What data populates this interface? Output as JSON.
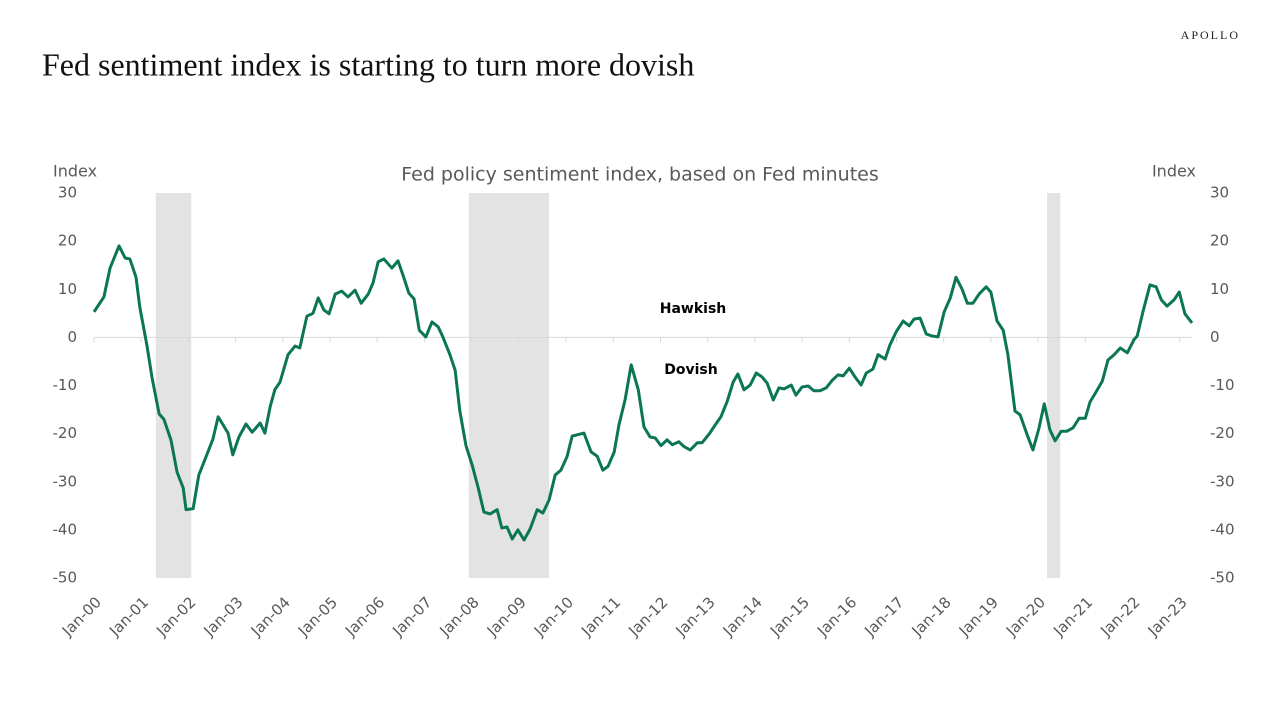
{
  "header": {
    "brand": "APOLLO",
    "title": "Fed sentiment index is starting to turn more dovish"
  },
  "chart_data": {
    "type": "line",
    "title": "Fed policy sentiment index, based on Fed minutes",
    "y_label": "Index",
    "y2_label": "Index",
    "annotations": [
      "Hawkish",
      "Dovish"
    ],
    "x": [
      2000.0,
      2000.21,
      2000.34,
      2000.53,
      2000.66,
      2000.76,
      2000.89,
      2000.97,
      2001.12,
      2001.23,
      2001.38,
      2001.48,
      2001.63,
      2001.76,
      2001.89,
      2001.95,
      2002.1,
      2002.22,
      2002.39,
      2002.52,
      2002.63,
      2002.84,
      2002.94,
      2003.07,
      2003.22,
      2003.35,
      2003.52,
      2003.62,
      2003.73,
      2003.83,
      2003.94,
      2004.11,
      2004.26,
      2004.36,
      2004.51,
      2004.64,
      2004.75,
      2004.87,
      2004.98,
      2005.11,
      2005.25,
      2005.38,
      2005.53,
      2005.66,
      2005.81,
      2005.91,
      2006.02,
      2006.14,
      2006.31,
      2006.44,
      2006.55,
      2006.67,
      2006.78,
      2006.89,
      2007.03,
      2007.16,
      2007.29,
      2007.39,
      2007.54,
      2007.65,
      2007.75,
      2007.88,
      2008.01,
      2008.14,
      2008.26,
      2008.39,
      2008.54,
      2008.64,
      2008.75,
      2008.86,
      2008.98,
      2009.11,
      2009.24,
      2009.39,
      2009.51,
      2009.64,
      2009.77,
      2009.89,
      2010.02,
      2010.13,
      2010.38,
      2010.53,
      2010.66,
      2010.78,
      2010.89,
      2011.02,
      2011.12,
      2011.25,
      2011.38,
      2011.53,
      2011.65,
      2011.78,
      2011.89,
      2012.01,
      2012.14,
      2012.25,
      2012.39,
      2012.5,
      2012.63,
      2012.78,
      2012.88,
      2013.03,
      2013.16,
      2013.28,
      2013.41,
      2013.54,
      2013.64,
      2013.77,
      2013.9,
      2014.03,
      2014.15,
      2014.26,
      2014.39,
      2014.51,
      2014.62,
      2014.77,
      2014.87,
      2015.0,
      2015.13,
      2015.25,
      2015.38,
      2015.51,
      2015.64,
      2015.76,
      2015.87,
      2016.0,
      2016.12,
      2016.25,
      2016.36,
      2016.5,
      2016.61,
      2016.76,
      2016.86,
      2016.99,
      2017.14,
      2017.27,
      2017.37,
      2017.5,
      2017.63,
      2017.75,
      2017.88,
      2018.01,
      2018.14,
      2018.26,
      2018.39,
      2018.5,
      2018.62,
      2018.75,
      2018.9,
      2019.0,
      2019.13,
      2019.26,
      2019.36,
      2019.51,
      2019.62,
      2019.77,
      2019.89,
      2020.02,
      2020.13,
      2020.25,
      2020.36,
      2020.49,
      2020.61,
      2020.74,
      2020.87,
      2021.0,
      2021.1,
      2021.23,
      2021.36,
      2021.48,
      2021.61,
      2021.74,
      2021.89,
      2022.03,
      2022.1,
      2022.22,
      2022.37,
      2022.5,
      2022.61,
      2022.73,
      2022.88,
      2022.99,
      2023.11,
      2023.26
    ],
    "series": [
      {
        "color": "#0b7656",
        "values": [
          5.3,
          8.4,
          14.4,
          19,
          16.5,
          16.3,
          12.5,
          6.3,
          -1.6,
          -8.4,
          -15.9,
          -17,
          -21.3,
          -28,
          -31.3,
          -35.8,
          -35.6,
          -28.6,
          -24.4,
          -21.1,
          -16.5,
          -19.9,
          -24.4,
          -20.7,
          -18,
          -19.7,
          -17.8,
          -19.9,
          -14.5,
          -10.9,
          -9.3,
          -3.6,
          -1.8,
          -2.2,
          4.4,
          5,
          8.2,
          5.7,
          4.9,
          9,
          9.6,
          8.4,
          9.8,
          7.1,
          9,
          11.3,
          15.7,
          16.3,
          14.4,
          15.9,
          12.8,
          9.2,
          8,
          1.5,
          0.1,
          3.2,
          2.2,
          0.1,
          -3.6,
          -6.8,
          -15.3,
          -22.5,
          -26.5,
          -31.3,
          -36.3,
          -36.7,
          -35.8,
          -39.6,
          -39.4,
          -41.9,
          -40,
          -42.1,
          -39.8,
          -35.8,
          -36.5,
          -33.8,
          -28.6,
          -27.6,
          -24.8,
          -20.5,
          -19.9,
          -23.8,
          -24.7,
          -27.6,
          -26.8,
          -23.8,
          -18.2,
          -13,
          -5.7,
          -10.9,
          -18.6,
          -20.7,
          -20.9,
          -22.5,
          -21.3,
          -22.3,
          -21.7,
          -22.7,
          -23.4,
          -21.9,
          -21.9,
          -20.1,
          -18.2,
          -16.5,
          -13.4,
          -9.3,
          -7.6,
          -10.9,
          -9.9,
          -7.4,
          -8.2,
          -9.5,
          -13,
          -10.5,
          -10.7,
          -9.9,
          -12,
          -10.3,
          -10.1,
          -11.1,
          -11.1,
          -10.5,
          -8.9,
          -7.8,
          -8,
          -6.4,
          -8.2,
          -9.9,
          -7.4,
          -6.6,
          -3.6,
          -4.5,
          -1.6,
          1.1,
          3.4,
          2.4,
          3.8,
          4,
          0.7,
          0.3,
          0.1,
          5.3,
          8.2,
          12.5,
          10,
          7.1,
          7.1,
          9,
          10.5,
          9.4,
          3.4,
          1.5,
          -3.6,
          -15.3,
          -16.1,
          -20.3,
          -23.4,
          -18.8,
          -13.8,
          -19.2,
          -21.5,
          -19.5,
          -19.5,
          -18.8,
          -16.8,
          -16.8,
          -13.4,
          -11.3,
          -9.1,
          -4.7,
          -3.6,
          -2.2,
          -3.2,
          -0.5,
          0.3,
          5.3,
          10.9,
          10.5,
          7.8,
          6.5,
          7.8,
          9.4,
          4.9,
          3
        ]
      }
    ],
    "shaded_periods": [
      [
        2001.31,
        2002.06
      ],
      [
        2007.94,
        2009.64
      ],
      [
        2020.19,
        2020.47
      ]
    ],
    "shade_color": "#e3e3e3",
    "xlim": [
      2000,
      2023.26
    ],
    "xticks": [
      {
        "value": 2000,
        "label": "Jan-00"
      },
      {
        "value": 2001,
        "label": "Jan-01"
      },
      {
        "value": 2002,
        "label": "Jan-02"
      },
      {
        "value": 2003,
        "label": "Jan-03"
      },
      {
        "value": 2004,
        "label": "Jan-04"
      },
      {
        "value": 2005,
        "label": "Jan-05"
      },
      {
        "value": 2006,
        "label": "Jan-06"
      },
      {
        "value": 2007,
        "label": "Jan-07"
      },
      {
        "value": 2008,
        "label": "Jan-08"
      },
      {
        "value": 2009,
        "label": "Jan-09"
      },
      {
        "value": 2010,
        "label": "Jan-10"
      },
      {
        "value": 2011,
        "label": "Jan-11"
      },
      {
        "value": 2012,
        "label": "Jan-12"
      },
      {
        "value": 2013,
        "label": "Jan-13"
      },
      {
        "value": 2014,
        "label": "Jan-14"
      },
      {
        "value": 2015,
        "label": "Jan-15"
      },
      {
        "value": 2016,
        "label": "Jan-16"
      },
      {
        "value": 2017,
        "label": "Jan-17"
      },
      {
        "value": 2018,
        "label": "Jan-18"
      },
      {
        "value": 2019,
        "label": "Jan-19"
      },
      {
        "value": 2020,
        "label": "Jan-20"
      },
      {
        "value": 2021,
        "label": "Jan-21"
      },
      {
        "value": 2022,
        "label": "Jan-22"
      },
      {
        "value": 2023,
        "label": "Jan-23"
      }
    ],
    "ylim": [
      -50,
      30
    ],
    "yticks": [
      30,
      20,
      10,
      0,
      -10,
      -20,
      -30,
      -40,
      -50
    ],
    "y2lim": [
      -50,
      30
    ],
    "y2ticks": [
      30,
      20,
      10,
      0,
      -10,
      -20,
      -30,
      -40,
      -50
    ],
    "grid": false
  }
}
